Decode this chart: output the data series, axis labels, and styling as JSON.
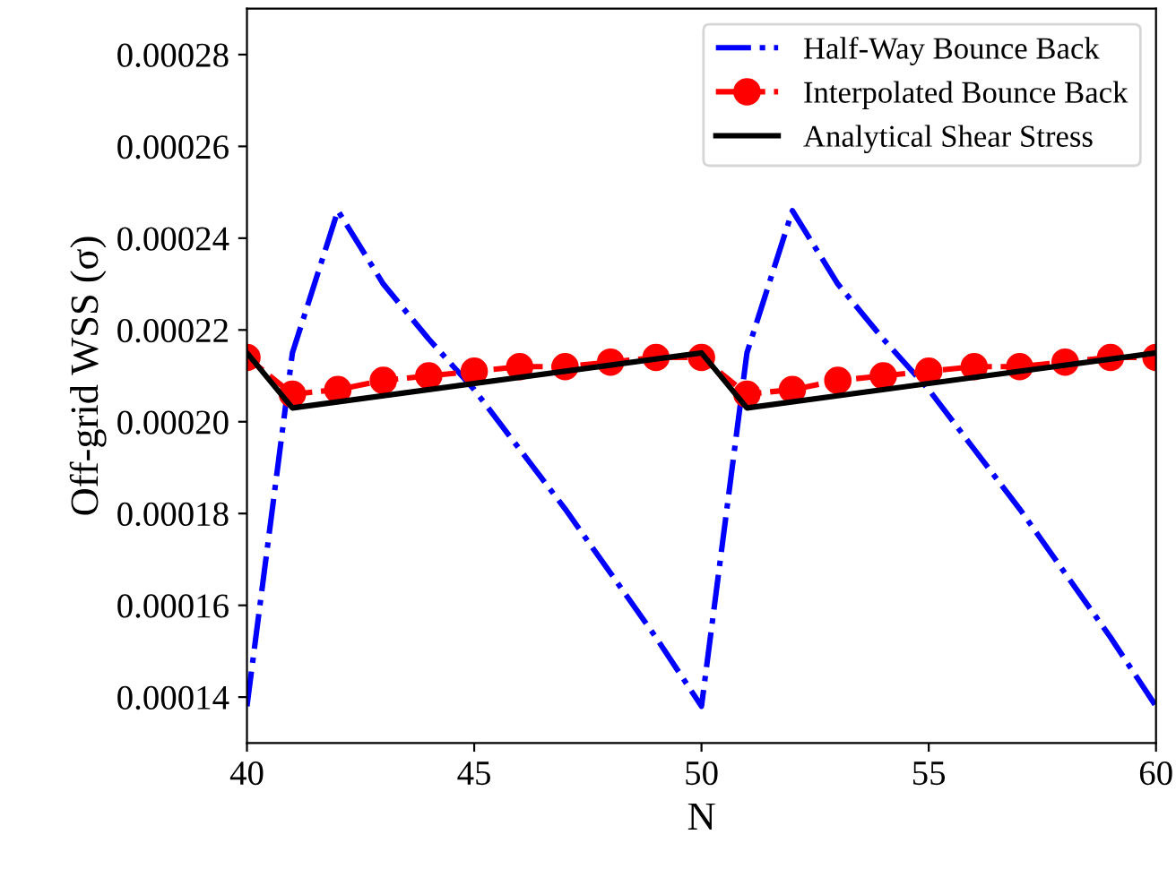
{
  "chart_data": {
    "type": "line",
    "xlabel": "N",
    "ylabel": "Off-grid WSS (σ)",
    "xlim": [
      40,
      60
    ],
    "xticks": [
      40,
      45,
      50,
      55,
      60
    ],
    "ylim": [
      0.00013,
      0.00029
    ],
    "yticks": [
      {
        "value": 0.00014,
        "label": "0.00014"
      },
      {
        "value": 0.00016,
        "label": "0.00016"
      },
      {
        "value": 0.00018,
        "label": "0.00018"
      },
      {
        "value": 0.0002,
        "label": "0.00020"
      },
      {
        "value": 0.00022,
        "label": "0.00022"
      },
      {
        "value": 0.00024,
        "label": "0.00024"
      },
      {
        "value": 0.00026,
        "label": "0.00026"
      },
      {
        "value": 0.00028,
        "label": "0.00028"
      }
    ],
    "grid": false,
    "legend": "top right",
    "series": [
      {
        "name": "Half-Way Bounce Back",
        "color": "#0000ff",
        "line_style": "dashdot",
        "marker": "none",
        "x": [
          40,
          41,
          42,
          43,
          44,
          45,
          46,
          47,
          48,
          49,
          50,
          51,
          52,
          53,
          54,
          55,
          56,
          57,
          58,
          59,
          60
        ],
        "values": [
          0.000138,
          0.000215,
          0.000246,
          0.00023,
          0.000218,
          0.000207,
          0.000194,
          0.000181,
          0.000167,
          0.000153,
          0.000138,
          0.000215,
          0.000246,
          0.00023,
          0.000218,
          0.000207,
          0.000194,
          0.000181,
          0.000167,
          0.000153,
          0.000138
        ]
      },
      {
        "name": "Interpolated Bounce Back",
        "color": "#ff0000",
        "line_style": "dashed",
        "marker": "circle",
        "x": [
          40,
          41,
          42,
          43,
          44,
          45,
          46,
          47,
          48,
          49,
          50,
          51,
          52,
          53,
          54,
          55,
          56,
          57,
          58,
          59,
          60
        ],
        "values": [
          0.000214,
          0.000206,
          0.000207,
          0.000209,
          0.00021,
          0.000211,
          0.000212,
          0.000212,
          0.000213,
          0.000214,
          0.000214,
          0.000206,
          0.000207,
          0.000209,
          0.00021,
          0.000211,
          0.000212,
          0.000212,
          0.000213,
          0.000214,
          0.000214
        ]
      },
      {
        "name": "Analytical Shear Stress",
        "color": "#000000",
        "line_style": "solid",
        "marker": "none",
        "x": [
          40,
          41,
          50,
          51,
          60
        ],
        "values": [
          0.000215,
          0.000203,
          0.000215,
          0.000203,
          0.000215
        ]
      }
    ]
  }
}
